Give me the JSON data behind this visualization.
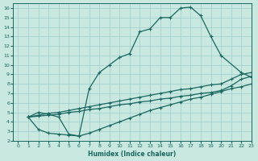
{
  "xlabel": "Humidex (Indice chaleur)",
  "ylabel": "",
  "xlim": [
    -0.5,
    23
  ],
  "ylim": [
    2,
    16.5
  ],
  "xticks": [
    0,
    1,
    2,
    3,
    4,
    5,
    6,
    7,
    8,
    9,
    10,
    11,
    12,
    13,
    14,
    15,
    16,
    17,
    18,
    19,
    20,
    21,
    22,
    23
  ],
  "yticks": [
    2,
    3,
    4,
    5,
    6,
    7,
    8,
    9,
    10,
    11,
    12,
    13,
    14,
    15,
    16
  ],
  "bg_color": "#c8e8e0",
  "grid_color": "#9ecece",
  "line_color": "#1a6660",
  "curve_main": {
    "x": [
      1,
      2,
      3,
      4,
      5,
      6,
      7,
      8,
      9,
      10,
      11,
      12,
      13,
      14,
      15,
      16,
      17,
      18,
      19,
      20,
      22,
      23
    ],
    "y": [
      4.5,
      5.0,
      4.8,
      4.5,
      2.7,
      2.5,
      7.5,
      9.2,
      10.0,
      10.8,
      11.2,
      13.5,
      13.8,
      15.0,
      15.0,
      16.0,
      16.1,
      15.2,
      13.0,
      11.0,
      9.2,
      8.7
    ]
  },
  "curve_dip": {
    "x": [
      1,
      2,
      3,
      4,
      5,
      6,
      7,
      8,
      9,
      10,
      11,
      12,
      13,
      14,
      15,
      16,
      17,
      18,
      19,
      20,
      21,
      22,
      23
    ],
    "y": [
      4.5,
      3.2,
      2.8,
      2.7,
      2.6,
      2.5,
      2.8,
      3.2,
      3.6,
      4.0,
      4.4,
      4.8,
      5.2,
      5.5,
      5.8,
      6.1,
      6.4,
      6.6,
      6.9,
      7.2,
      7.5,
      7.7,
      8.0
    ]
  },
  "curve_flat1": {
    "x": [
      1,
      2,
      3,
      4,
      5,
      6,
      7,
      8,
      9,
      10,
      11,
      12,
      13,
      14,
      15,
      16,
      17,
      18,
      19,
      20,
      21,
      22,
      23
    ],
    "y": [
      4.5,
      4.7,
      4.9,
      5.0,
      5.2,
      5.4,
      5.6,
      5.8,
      6.0,
      6.2,
      6.4,
      6.6,
      6.8,
      7.0,
      7.2,
      7.4,
      7.5,
      7.7,
      7.9,
      8.0,
      8.5,
      9.0,
      9.2
    ]
  },
  "curve_flat2": {
    "x": [
      1,
      2,
      3,
      4,
      5,
      6,
      7,
      8,
      9,
      10,
      11,
      12,
      13,
      14,
      15,
      16,
      17,
      18,
      19,
      20,
      21,
      22,
      23
    ],
    "y": [
      4.5,
      4.6,
      4.7,
      4.8,
      5.0,
      5.1,
      5.3,
      5.4,
      5.6,
      5.8,
      5.9,
      6.1,
      6.2,
      6.4,
      6.5,
      6.7,
      6.8,
      7.0,
      7.1,
      7.3,
      7.8,
      8.5,
      8.8
    ]
  }
}
